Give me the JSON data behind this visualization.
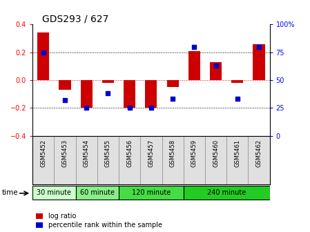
{
  "title": "GDS293 / 627",
  "samples": [
    "GSM5452",
    "GSM5453",
    "GSM5454",
    "GSM5455",
    "GSM5456",
    "GSM5457",
    "GSM5458",
    "GSM5459",
    "GSM5460",
    "GSM5461",
    "GSM5462"
  ],
  "log_ratio": [
    0.34,
    -0.07,
    -0.2,
    -0.02,
    -0.2,
    -0.2,
    -0.05,
    0.21,
    0.13,
    -0.02,
    0.26
  ],
  "percentile": [
    75,
    32,
    25,
    38,
    25,
    25,
    33,
    80,
    63,
    33,
    80
  ],
  "ylim_left": [
    -0.4,
    0.4
  ],
  "ylim_right": [
    0,
    100
  ],
  "yticks_left": [
    -0.4,
    -0.2,
    0.0,
    0.2,
    0.4
  ],
  "yticks_right": [
    0,
    25,
    50,
    75,
    100
  ],
  "hlines": [
    0.2,
    0.0,
    -0.2
  ],
  "hline_colors": [
    "black",
    "red",
    "black"
  ],
  "hline_styles": [
    "dotted",
    "dotted",
    "dotted"
  ],
  "bar_color": "#cc0000",
  "dot_color": "#0000cc",
  "bar_width": 0.55,
  "groups": [
    {
      "label": "30 minute",
      "start": 0,
      "end": 1,
      "color": "#ccffcc"
    },
    {
      "label": "60 minute",
      "start": 2,
      "end": 3,
      "color": "#99ee99"
    },
    {
      "label": "120 minute",
      "start": 4,
      "end": 6,
      "color": "#66dd66"
    },
    {
      "label": "240 minute",
      "start": 7,
      "end": 10,
      "color": "#44cc44"
    }
  ],
  "xlabel_time": "time",
  "legend_log": "log ratio",
  "legend_pct": "percentile rank within the sample",
  "title_fontsize": 10,
  "tick_fontsize": 7,
  "sample_fontsize": 6
}
